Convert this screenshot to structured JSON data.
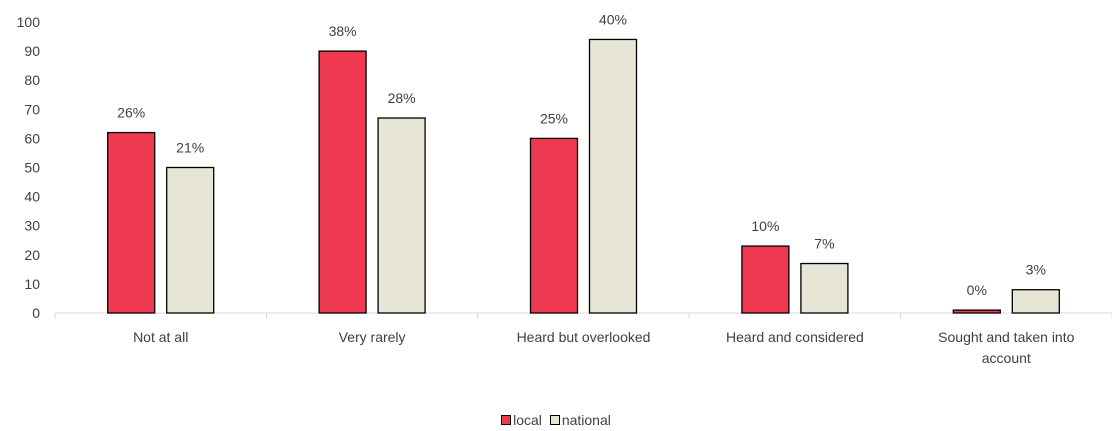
{
  "chart_data": {
    "type": "bar",
    "categories": [
      "Not at all",
      "Very rarely",
      "Heard but overlooked",
      "Heard and considered",
      "Sought and taken into account"
    ],
    "series": [
      {
        "name": "local",
        "values": [
          62,
          90,
          60,
          23,
          1
        ],
        "labels": [
          "26%",
          "38%",
          "25%",
          "10%",
          "0%"
        ],
        "color": "#ef3950"
      },
      {
        "name": "national",
        "values": [
          50,
          67,
          94,
          17,
          8
        ],
        "labels": [
          "21%",
          "28%",
          "40%",
          "7%",
          "3%"
        ],
        "color": "#e7e6d6"
      }
    ],
    "ylim": [
      0,
      100
    ],
    "yticks": [
      0,
      10,
      20,
      30,
      40,
      50,
      60,
      70,
      80,
      90,
      100
    ],
    "grid": false,
    "legend_position": "bottom",
    "bar_border_color": "#000000"
  }
}
